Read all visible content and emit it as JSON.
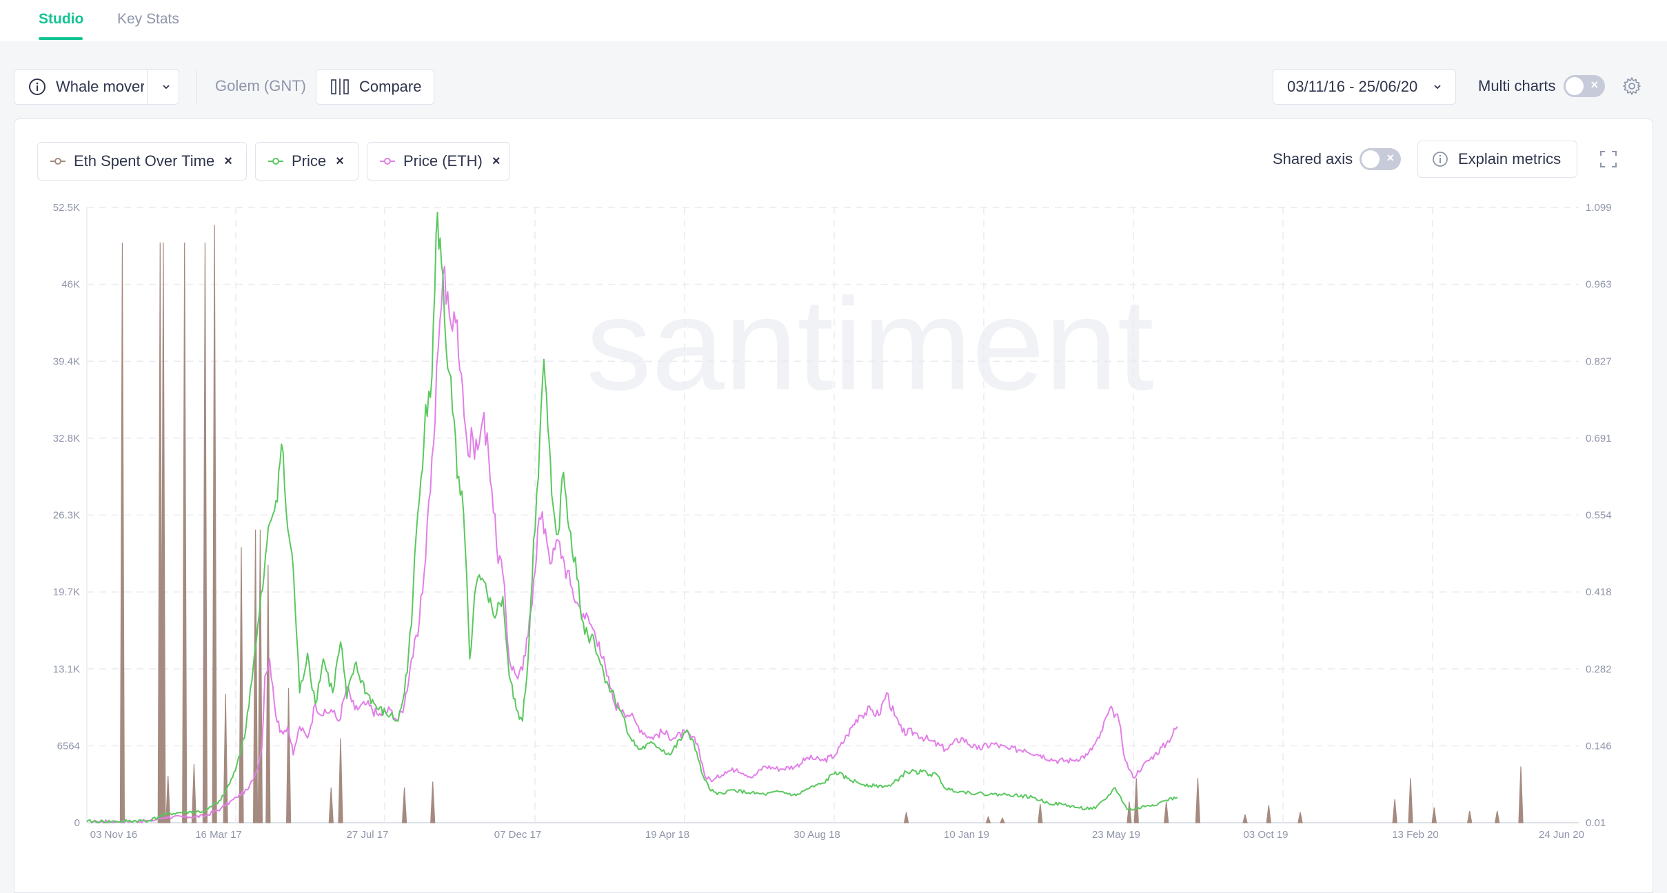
{
  "tabs": [
    {
      "label": "Studio",
      "active": true
    },
    {
      "label": "Key Stats",
      "active": false
    }
  ],
  "toolbar": {
    "template_label": "Whale mover",
    "asset_label": "Golem (GNT)",
    "compare_label": "Compare",
    "date_range": "03/11/16 - 25/06/20",
    "multi_charts_label": "Multi charts"
  },
  "chart_header": {
    "metrics": [
      {
        "label": "Eth Spent Over Time",
        "color": "#a58a7f"
      },
      {
        "label": "Price",
        "color": "#5ac85e"
      },
      {
        "label": "Price (ETH)",
        "color": "#e27fe8"
      }
    ],
    "shared_axis_label": "Shared axis",
    "explain_label": "Explain metrics"
  },
  "watermark": "santiment",
  "colors": {
    "accent": "#14c393",
    "eth_spent": "#a58a7f",
    "price": "#5ac85e",
    "price_eth": "#e27fe8"
  },
  "chart_data": {
    "type": "line",
    "x_ticks": [
      "03 Nov 16",
      "16 Mar 17",
      "27 Jul 17",
      "07 Dec 17",
      "19 Apr 18",
      "30 Aug 18",
      "10 Jan 19",
      "23 May 19",
      "03 Oct 19",
      "13 Feb 20",
      "24 Jun 20"
    ],
    "left_ticks": [
      "52.5K",
      "46K",
      "39.4K",
      "32.8K",
      "26.3K",
      "19.7K",
      "13.1K",
      "6564",
      "0"
    ],
    "right_ticks": [
      "1.099",
      "0.963",
      "0.827",
      "0.691",
      "0.554",
      "0.418",
      "0.282",
      "0.146",
      "0.01"
    ],
    "left_range": [
      0,
      52500
    ],
    "right_range": [
      0.01,
      1.099
    ],
    "x_range_days": [
      0,
      1330
    ],
    "grid": true,
    "series": [
      {
        "name": "Eth Spent Over Time",
        "style": "spikes",
        "axis": "left",
        "values": [
          [
            45,
            49500
          ],
          [
            93,
            49500
          ],
          [
            97,
            49500
          ],
          [
            103,
            4000
          ],
          [
            124,
            49500
          ],
          [
            136,
            5000
          ],
          [
            150,
            49500
          ],
          [
            162,
            51000
          ],
          [
            176,
            11000
          ],
          [
            196,
            23500
          ],
          [
            214,
            25000
          ],
          [
            220,
            25000
          ],
          [
            230,
            22000
          ],
          [
            256,
            11500
          ],
          [
            310,
            3000
          ],
          [
            322,
            7200
          ],
          [
            403,
            3000
          ],
          [
            439,
            3500
          ],
          [
            1040,
            900
          ],
          [
            1144,
            500
          ],
          [
            1162,
            400
          ],
          [
            1210,
            1600
          ],
          [
            1323,
            1800
          ],
          [
            1332,
            3800
          ],
          [
            1370,
            1800
          ],
          [
            1410,
            3800
          ],
          [
            1470,
            700
          ],
          [
            1500,
            1500
          ],
          [
            1540,
            900
          ],
          [
            1660,
            2000
          ],
          [
            1680,
            3800
          ],
          [
            1710,
            1300
          ],
          [
            1755,
            1000
          ],
          [
            1790,
            1000
          ],
          [
            1820,
            4800
          ]
        ]
      },
      {
        "name": "Price",
        "style": "line",
        "axis": "right",
        "values": [
          [
            0,
            0.012
          ],
          [
            40,
            0.012
          ],
          [
            80,
            0.014
          ],
          [
            100,
            0.025
          ],
          [
            120,
            0.028
          ],
          [
            150,
            0.03
          ],
          [
            170,
            0.05
          ],
          [
            185,
            0.09
          ],
          [
            200,
            0.16
          ],
          [
            215,
            0.33
          ],
          [
            225,
            0.45
          ],
          [
            232,
            0.54
          ],
          [
            240,
            0.58
          ],
          [
            247,
            0.68
          ],
          [
            255,
            0.53
          ],
          [
            262,
            0.46
          ],
          [
            270,
            0.24
          ],
          [
            280,
            0.31
          ],
          [
            290,
            0.22
          ],
          [
            300,
            0.3
          ],
          [
            312,
            0.24
          ],
          [
            322,
            0.33
          ],
          [
            330,
            0.23
          ],
          [
            340,
            0.29
          ],
          [
            355,
            0.24
          ],
          [
            370,
            0.21
          ],
          [
            385,
            0.2
          ],
          [
            395,
            0.19
          ],
          [
            403,
            0.24
          ],
          [
            412,
            0.36
          ],
          [
            418,
            0.52
          ],
          [
            424,
            0.62
          ],
          [
            430,
            0.75
          ],
          [
            438,
            0.8
          ],
          [
            445,
            1.09
          ],
          [
            450,
            1.0
          ],
          [
            456,
            0.85
          ],
          [
            462,
            0.8
          ],
          [
            470,
            0.62
          ],
          [
            478,
            0.56
          ],
          [
            486,
            0.3
          ],
          [
            494,
            0.43
          ],
          [
            500,
            0.44
          ],
          [
            510,
            0.4
          ],
          [
            520,
            0.38
          ],
          [
            528,
            0.41
          ],
          [
            536,
            0.27
          ],
          [
            545,
            0.21
          ],
          [
            553,
            0.19
          ],
          [
            560,
            0.3
          ],
          [
            567,
            0.51
          ],
          [
            573,
            0.62
          ],
          [
            580,
            0.83
          ],
          [
            585,
            0.71
          ],
          [
            590,
            0.59
          ],
          [
            598,
            0.52
          ],
          [
            605,
            0.63
          ],
          [
            612,
            0.53
          ],
          [
            620,
            0.48
          ],
          [
            628,
            0.37
          ],
          [
            636,
            0.34
          ],
          [
            643,
            0.34
          ],
          [
            650,
            0.3
          ],
          [
            660,
            0.26
          ],
          [
            670,
            0.23
          ],
          [
            680,
            0.2
          ],
          [
            690,
            0.16
          ],
          [
            700,
            0.14
          ],
          [
            720,
            0.15
          ],
          [
            740,
            0.13
          ],
          [
            760,
            0.17
          ],
          [
            770,
            0.155
          ],
          [
            780,
            0.1
          ],
          [
            790,
            0.07
          ],
          [
            800,
            0.06
          ],
          [
            820,
            0.068
          ],
          [
            840,
            0.063
          ],
          [
            860,
            0.06
          ],
          [
            880,
            0.065
          ],
          [
            900,
            0.058
          ],
          [
            915,
            0.07
          ],
          [
            935,
            0.08
          ],
          [
            950,
            0.1
          ],
          [
            965,
            0.088
          ],
          [
            980,
            0.08
          ],
          [
            1000,
            0.075
          ],
          [
            1020,
            0.075
          ],
          [
            1040,
            0.1
          ],
          [
            1060,
            0.1
          ],
          [
            1080,
            0.093
          ],
          [
            1090,
            0.07
          ],
          [
            1110,
            0.065
          ],
          [
            1130,
            0.062
          ],
          [
            1150,
            0.06
          ],
          [
            1170,
            0.06
          ],
          [
            1200,
            0.055
          ],
          [
            1220,
            0.045
          ],
          [
            1240,
            0.042
          ],
          [
            1260,
            0.036
          ],
          [
            1280,
            0.035
          ],
          [
            1295,
            0.055
          ],
          [
            1305,
            0.072
          ],
          [
            1310,
            0.06
          ],
          [
            1320,
            0.034
          ],
          [
            1330,
            0.034
          ],
          [
            1345,
            0.04
          ],
          [
            1360,
            0.044
          ],
          [
            1370,
            0.05
          ],
          [
            1384,
            0.055
          ]
        ]
      },
      {
        "name": "Price (ETH)",
        "style": "line",
        "axis": "right",
        "values": [
          [
            0,
            0.012
          ],
          [
            40,
            0.012
          ],
          [
            80,
            0.013
          ],
          [
            100,
            0.02
          ],
          [
            130,
            0.02
          ],
          [
            150,
            0.022
          ],
          [
            170,
            0.035
          ],
          [
            190,
            0.055
          ],
          [
            205,
            0.07
          ],
          [
            215,
            0.1
          ],
          [
            222,
            0.14
          ],
          [
            226,
            0.27
          ],
          [
            232,
            0.3
          ],
          [
            238,
            0.22
          ],
          [
            245,
            0.17
          ],
          [
            255,
            0.18
          ],
          [
            262,
            0.13
          ],
          [
            270,
            0.18
          ],
          [
            280,
            0.16
          ],
          [
            290,
            0.22
          ],
          [
            300,
            0.2
          ],
          [
            310,
            0.21
          ],
          [
            320,
            0.19
          ],
          [
            330,
            0.25
          ],
          [
            340,
            0.21
          ],
          [
            355,
            0.22
          ],
          [
            370,
            0.2
          ],
          [
            385,
            0.21
          ],
          [
            395,
            0.19
          ],
          [
            403,
            0.22
          ],
          [
            412,
            0.3
          ],
          [
            420,
            0.34
          ],
          [
            428,
            0.45
          ],
          [
            434,
            0.58
          ],
          [
            440,
            0.68
          ],
          [
            446,
            0.85
          ],
          [
            452,
            0.98
          ],
          [
            458,
            0.95
          ],
          [
            464,
            0.88
          ],
          [
            470,
            0.9
          ],
          [
            477,
            0.78
          ],
          [
            484,
            0.66
          ],
          [
            490,
            0.69
          ],
          [
            496,
            0.67
          ],
          [
            502,
            0.72
          ],
          [
            508,
            0.7
          ],
          [
            514,
            0.6
          ],
          [
            520,
            0.5
          ],
          [
            528,
            0.45
          ],
          [
            536,
            0.3
          ],
          [
            545,
            0.27
          ],
          [
            553,
            0.28
          ],
          [
            560,
            0.34
          ],
          [
            567,
            0.44
          ],
          [
            574,
            0.55
          ],
          [
            582,
            0.53
          ],
          [
            590,
            0.47
          ],
          [
            598,
            0.51
          ],
          [
            606,
            0.47
          ],
          [
            614,
            0.43
          ],
          [
            622,
            0.4
          ],
          [
            630,
            0.38
          ],
          [
            640,
            0.36
          ],
          [
            650,
            0.33
          ],
          [
            660,
            0.27
          ],
          [
            670,
            0.22
          ],
          [
            680,
            0.21
          ],
          [
            690,
            0.2
          ],
          [
            700,
            0.18
          ],
          [
            715,
            0.16
          ],
          [
            730,
            0.17
          ],
          [
            745,
            0.16
          ],
          [
            760,
            0.17
          ],
          [
            775,
            0.15
          ],
          [
            785,
            0.09
          ],
          [
            795,
            0.085
          ],
          [
            810,
            0.1
          ],
          [
            825,
            0.105
          ],
          [
            845,
            0.09
          ],
          [
            860,
            0.11
          ],
          [
            880,
            0.105
          ],
          [
            900,
            0.11
          ],
          [
            915,
            0.125
          ],
          [
            935,
            0.12
          ],
          [
            950,
            0.13
          ],
          [
            965,
            0.165
          ],
          [
            980,
            0.2
          ],
          [
            995,
            0.21
          ],
          [
            1005,
            0.2
          ],
          [
            1015,
            0.24
          ],
          [
            1025,
            0.2
          ],
          [
            1035,
            0.17
          ],
          [
            1050,
            0.17
          ],
          [
            1070,
            0.155
          ],
          [
            1090,
            0.14
          ],
          [
            1110,
            0.16
          ],
          [
            1130,
            0.14
          ],
          [
            1150,
            0.15
          ],
          [
            1170,
            0.14
          ],
          [
            1190,
            0.14
          ],
          [
            1210,
            0.13
          ],
          [
            1230,
            0.12
          ],
          [
            1250,
            0.12
          ],
          [
            1270,
            0.13
          ],
          [
            1285,
            0.16
          ],
          [
            1295,
            0.2
          ],
          [
            1302,
            0.21
          ],
          [
            1310,
            0.19
          ],
          [
            1318,
            0.12
          ],
          [
            1328,
            0.09
          ],
          [
            1340,
            0.11
          ],
          [
            1355,
            0.13
          ],
          [
            1370,
            0.15
          ],
          [
            1384,
            0.18
          ]
        ]
      }
    ]
  }
}
